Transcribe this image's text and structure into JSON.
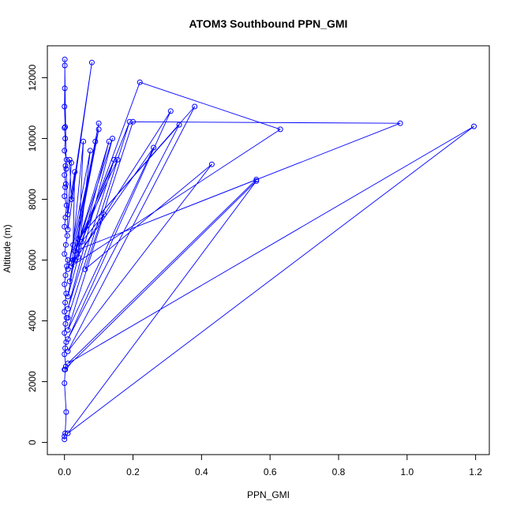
{
  "chart_data": {
    "type": "line",
    "title": "ATOM3 Southbound PPN_GMI",
    "xlabel": "PPN_GMI",
    "ylabel": "Altitude (m)",
    "xlim": [
      -0.05,
      1.24
    ],
    "ylim": [
      -400,
      13050
    ],
    "x_ticks": [
      0.0,
      0.2,
      0.4,
      0.6,
      0.8,
      1.0,
      1.2
    ],
    "x_tick_labels": [
      "0.0",
      "0.2",
      "0.4",
      "0.6",
      "0.8",
      "1.0",
      "1.2"
    ],
    "y_ticks": [
      0,
      2000,
      4000,
      6000,
      8000,
      10000,
      12000
    ],
    "y_tick_labels": [
      "0",
      "2000",
      "4000",
      "6000",
      "8000",
      "10000",
      "12000"
    ],
    "grid": false,
    "legend": "none",
    "line_color": "#0000ff",
    "marker": "open-circle",
    "series": [
      {
        "points": [
          [
            0.0,
            100
          ],
          [
            0.0,
            200
          ],
          [
            0.002,
            300
          ],
          [
            0.005,
            1000
          ],
          [
            0.0,
            1950
          ],
          [
            0.002,
            2400
          ],
          [
            0.004,
            2500
          ],
          [
            0.0,
            2900
          ],
          [
            0.002,
            3100
          ],
          [
            0.005,
            3300
          ],
          [
            0.0,
            3600
          ],
          [
            0.003,
            3900
          ],
          [
            0.006,
            4100
          ],
          [
            0.0,
            4300
          ],
          [
            0.002,
            4600
          ],
          [
            0.005,
            4900
          ],
          [
            0.0,
            5200
          ],
          [
            0.003,
            5500
          ],
          [
            0.007,
            5800
          ],
          [
            0.01,
            6000
          ],
          [
            0.0,
            6200
          ],
          [
            0.004,
            6500
          ],
          [
            0.008,
            6800
          ],
          [
            0.0,
            7100
          ],
          [
            0.003,
            7400
          ],
          [
            0.006,
            7800
          ],
          [
            0.0,
            8100
          ],
          [
            0.002,
            8400
          ],
          [
            0.004,
            8500
          ],
          [
            0.0,
            8800
          ],
          [
            0.003,
            9100
          ],
          [
            0.006,
            9300
          ],
          [
            0.0,
            9600
          ],
          [
            0.002,
            10000
          ],
          [
            0.0,
            10350
          ],
          [
            0.002,
            10380
          ],
          [
            0.0,
            11050
          ],
          [
            0.001,
            11650
          ],
          [
            0.001,
            12600
          ],
          [
            0.001,
            12400
          ],
          [
            0.005,
            9000
          ],
          [
            0.01,
            7000
          ],
          [
            0.08,
            12500
          ],
          [
            0.02,
            8000
          ],
          [
            0.015,
            9300
          ],
          [
            0.02,
            9200
          ],
          [
            0.01,
            7500
          ],
          [
            0.03,
            8900
          ],
          [
            0.025,
            6500
          ],
          [
            0.055,
            9900
          ],
          [
            0.04,
            6100
          ],
          [
            0.075,
            9600
          ],
          [
            0.01,
            5700
          ],
          [
            0.1,
            10300
          ],
          [
            0.015,
            5300
          ],
          [
            0.1,
            10500
          ],
          [
            0.02,
            5900
          ],
          [
            0.09,
            9900
          ],
          [
            0.01,
            4800
          ],
          [
            0.13,
            9900
          ],
          [
            0.025,
            6000
          ],
          [
            0.14,
            10000
          ],
          [
            0.01,
            4400
          ],
          [
            0.145,
            9300
          ],
          [
            0.03,
            6300
          ],
          [
            0.155,
            9300
          ],
          [
            0.01,
            4100
          ],
          [
            0.19,
            10550
          ],
          [
            0.05,
            6600
          ],
          [
            0.115,
            7500
          ],
          [
            0.01,
            3700
          ],
          [
            0.26,
            9700
          ],
          [
            0.03,
            6000
          ],
          [
            0.22,
            11850
          ],
          [
            0.63,
            10300
          ],
          [
            0.02,
            5800
          ],
          [
            0.31,
            10900
          ],
          [
            0.01,
            3400
          ],
          [
            0.335,
            10450
          ],
          [
            0.04,
            6700
          ],
          [
            0.38,
            11050
          ],
          [
            0.01,
            3000
          ],
          [
            0.43,
            9150
          ],
          [
            0.06,
            5700
          ],
          [
            0.2,
            10550
          ],
          [
            0.98,
            10500
          ],
          [
            0.03,
            6300
          ],
          [
            0.56,
            8650
          ],
          [
            0.01,
            2600
          ],
          [
            1.195,
            10400
          ],
          [
            0.01,
            300
          ],
          [
            0.56,
            8600
          ],
          [
            0.0,
            2400
          ]
        ]
      }
    ]
  }
}
